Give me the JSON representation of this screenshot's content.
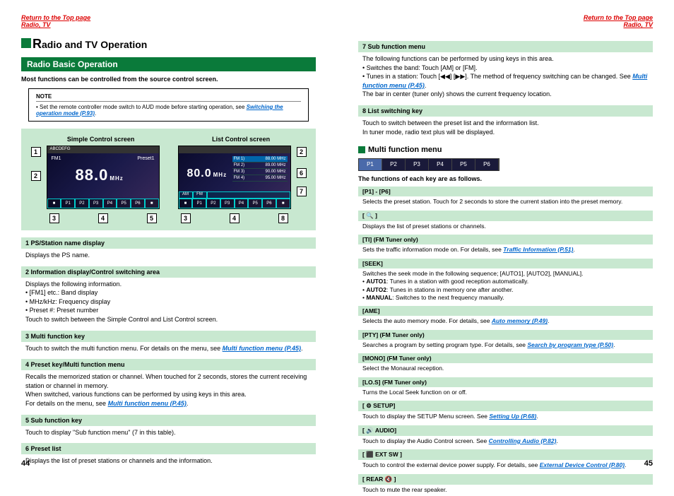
{
  "topLink": "Return to the Top page",
  "breadcrumb": "Radio, TV",
  "title": "Radio and TV Operation",
  "sectionTitle": "Radio Basic Operation",
  "intro": "Most functions can be controlled from the source control screen.",
  "note": {
    "label": "NOTE",
    "text": "Set the remote controller mode switch to AUD mode before starting operation, see ",
    "link": "Switching the operation mode (P.93)"
  },
  "screenTitles": {
    "left": "Simple Control screen",
    "right": "List Control screen"
  },
  "screen1": {
    "topbar": "ABCDEFG",
    "fm": "FM1",
    "freq": "88.0",
    "unit": "MHz",
    "preset": "Preset1"
  },
  "screen2": {
    "freq": "80.0",
    "unit": "MHz",
    "presets": [
      {
        "p": "FM",
        "n": "1)",
        "f": "88.00 MHz"
      },
      {
        "p": "FM",
        "n": "2)",
        "f": "89.00 MHz"
      },
      {
        "p": "FM",
        "n": "3)",
        "f": "90.00 MHz"
      },
      {
        "p": "FM",
        "n": "4)",
        "f": "95.00 MHz"
      }
    ]
  },
  "botbtns": [
    "■",
    "P1",
    "P2",
    "P3",
    "P4",
    "P5",
    "P6",
    "■"
  ],
  "leftItems": [
    {
      "h": "1  PS/Station name display",
      "b": [
        "Displays the PS name."
      ]
    },
    {
      "h": "2  Information display/Control switching area",
      "b": [
        "Displays the following information.",
        "• [FM1] etc.: Band display",
        "• MHz/kHz: Frequency display",
        "• Preset #: Preset number",
        "Touch to switch between the Simple Control and List Control screen."
      ]
    },
    {
      "h": "3  Multi function key",
      "b": [
        "Touch to switch the multi function menu. For details on the menu, see "
      ],
      "link": "Multi function menu (P.45)"
    },
    {
      "h": "4  Preset key/Multi function menu",
      "b": [
        "Recalls the memorized station or channel. When touched for 2 seconds, stores the current receiving station or channel in memory.",
        "When switched, various functions can be performed by using keys in this area.",
        "For details on the menu, see "
      ],
      "link": "Multi function menu (P.45)"
    },
    {
      "h": "5  Sub function key",
      "b": [
        "Touch to display \"Sub function menu\" (7 in this table)."
      ]
    },
    {
      "h": "6  Preset list",
      "b": [
        "Displays the list of preset stations or channels and the information."
      ]
    }
  ],
  "rightTop": [
    {
      "h": "7  Sub function menu",
      "b": [
        "The following functions can be performed by using keys in this area.",
        "• Switches the band: Touch [AM] or [FM].",
        "• Tunes in a station: Touch [◀◀] [▶▶]. The method of frequency switching can be changed. See "
      ],
      "link": "Multi function menu (P.45)",
      "tail": "The bar in center (tuner only) shows the current frequency location."
    },
    {
      "h": "8  List switching key",
      "b": [
        "Touch to switch between the preset list and the information list.",
        "In tuner mode, radio text plus will be displayed."
      ]
    }
  ],
  "multiTitle": "Multi function menu",
  "menubar": [
    "P1",
    "P2",
    "P3",
    "P4",
    "P5",
    "P6"
  ],
  "funcIntro": "The functions of each key are as follows.",
  "rightItems": [
    {
      "h": "[P1] - [P6]",
      "b": "Selects the preset station. Touch for 2 seconds to store the current station into the preset memory."
    },
    {
      "h": "[ 🔍 ]",
      "b": "Displays the list of preset stations or channels."
    },
    {
      "h": "[TI] (FM Tuner only)",
      "b": "Sets the traffic information mode on. For details, see ",
      "link": "Traffic Information (P.51)"
    },
    {
      "h": "[SEEK]",
      "b": "Switches the seek mode in the following sequence; [AUTO1], [AUTO2], [MANUAL].",
      "bullets": [
        "AUTO1: Tunes in a station with good reception automatically.",
        "AUTO2: Tunes in stations in memory one after another.",
        "MANUAL: Switches to the next frequency manually."
      ]
    },
    {
      "h": "[AME]",
      "b": "Selects the auto memory mode. For details, see ",
      "link": "Auto memory (P.49)"
    },
    {
      "h": "[PTY] (FM Tuner only)",
      "b": "Searches a program by setting program type. For details, see ",
      "link": "Search by program type (P.50)"
    },
    {
      "h": "[MONO] (FM Tuner only)",
      "b": "Select the Monaural reception."
    },
    {
      "h": "[LO.S] (FM Tuner only)",
      "b": "Turns the Local Seek function on or off."
    },
    {
      "h": "[ ⚙ SETUP]",
      "b": "Touch to display the SETUP Menu screen. See ",
      "link": "Setting Up (P.68)"
    },
    {
      "h": "[ 🔊 AUDIO]",
      "b": "Touch to display the Audio Control screen. See ",
      "link": "Controlling Audio (P.82)"
    },
    {
      "h": "[ ⬛ EXT SW ]",
      "b": "Touch to control the external device power supply. For details, see ",
      "link": "External Device Control (P.80)"
    },
    {
      "h": "[ REAR 🔇 ]",
      "b": "Touch to mute the rear speaker."
    }
  ],
  "pageLeft": "44",
  "pageRight": "45",
  "colors": {
    "green": "#0a7a3a",
    "lightGreen": "#c8e8d0",
    "red": "#d00",
    "blue": "#06c"
  }
}
